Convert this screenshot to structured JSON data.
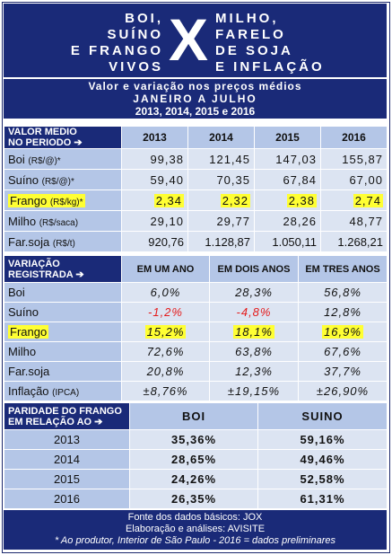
{
  "header": {
    "left_lines": [
      "BOI,",
      "SUÍNO",
      "E FRANGO",
      "VIVOS"
    ],
    "center": "X",
    "right_lines": [
      "MILHO,",
      "FARELO",
      "DE SOJA",
      "E INFLAÇÃO"
    ]
  },
  "subtitle": {
    "line1": "Valor e variação nos preços médios",
    "line2": "JANEIRO A JULHO",
    "line3": "2013, 2014, 2015 e 2016"
  },
  "prices": {
    "header_label": [
      "VALOR MEDIO",
      "NO PERIODO"
    ],
    "arrow": "➔",
    "years": [
      "2013",
      "2014",
      "2015",
      "2016"
    ],
    "rows": [
      {
        "name": "Boi",
        "unit": "(R$/@)*",
        "values": [
          "99,38",
          "121,45",
          "147,03",
          "155,87"
        ]
      },
      {
        "name": "Suíno",
        "unit": "(R$/@)*",
        "values": [
          "59,40",
          "70,35",
          "67,84",
          "67,00"
        ]
      },
      {
        "name": "Frango",
        "unit": "(R$/kg)*",
        "values": [
          "2,34",
          "2,32",
          "2,38",
          "2,74"
        ]
      },
      {
        "name": "Milho",
        "unit": "(R$/saca)",
        "values": [
          "29,10",
          "29,77",
          "28,26",
          "48,77"
        ]
      },
      {
        "name": "Far.soja",
        "unit": "(R$/t)",
        "values": [
          "920,76",
          "1.128,87",
          "1.050,11",
          "1.268,21"
        ]
      }
    ]
  },
  "variation": {
    "header_label": [
      "VARIAÇÃO",
      "REGISTRADA"
    ],
    "arrow": "➔",
    "columns": [
      "EM UM ANO",
      "EM DOIS ANOS",
      "EM TRES ANOS"
    ],
    "rows": [
      {
        "name": "Boi",
        "unit": "",
        "values": [
          "6,0%",
          "28,3%",
          "56,8%"
        ]
      },
      {
        "name": "Suíno",
        "unit": "",
        "values": [
          "-1,2%",
          "-4,8%",
          "12,8%"
        ]
      },
      {
        "name": "Frango",
        "unit": "",
        "values": [
          "15,2%",
          "18,1%",
          "16,9%"
        ]
      },
      {
        "name": "Milho",
        "unit": "",
        "values": [
          "72,6%",
          "63,8%",
          "67,6%"
        ]
      },
      {
        "name": "Far.soja",
        "unit": "",
        "values": [
          "20,8%",
          "12,3%",
          "37,7%"
        ]
      },
      {
        "name": "Inflação",
        "unit": "(IPCA)",
        "values": [
          "±8,76%",
          "±19,15%",
          "±26,90%"
        ]
      }
    ]
  },
  "parity": {
    "header_label": [
      "PARIDADE DO FRANGO",
      "EM RELAÇÃO AO"
    ],
    "arrow": "➔",
    "columns": [
      "BOI",
      "SUINO"
    ],
    "rows": [
      {
        "year": "2013",
        "values": [
          "35,36%",
          "59,16%"
        ]
      },
      {
        "year": "2014",
        "values": [
          "28,65%",
          "49,46%"
        ]
      },
      {
        "year": "2015",
        "values": [
          "24,26%",
          "52,58%"
        ]
      },
      {
        "year": "2016",
        "values": [
          "26,35%",
          "61,31%"
        ]
      }
    ]
  },
  "footer": {
    "line1": "Fonte dos dados básicos: JOX",
    "line2": "Elaboração e análises: AVISITE",
    "line3": "* Ao produtor, Interior de São Paulo  -  2016 = dados preliminares"
  },
  "colors": {
    "navy": "#1a2a78",
    "label_blue": "#b4c6e7",
    "cell_blue": "#dce4f2",
    "highlight": "#ffff33",
    "negative": "#e41b1b"
  }
}
